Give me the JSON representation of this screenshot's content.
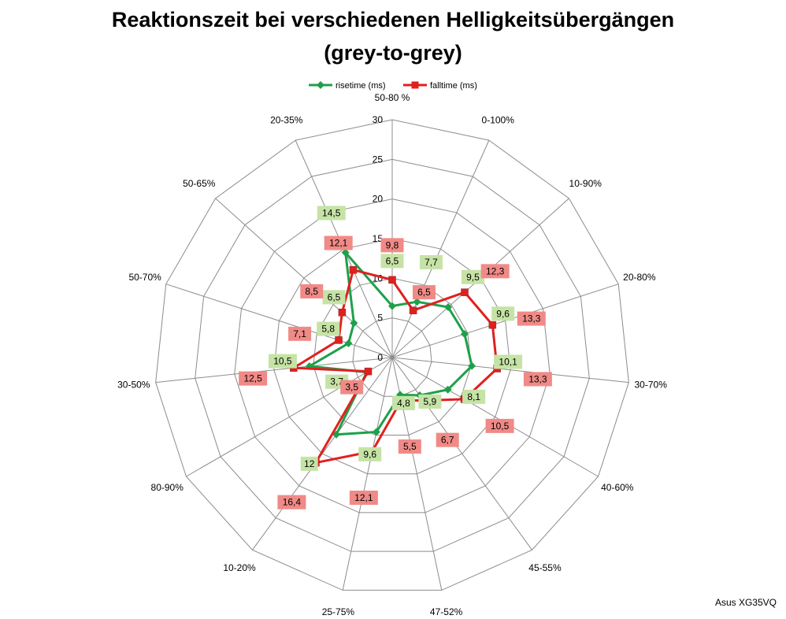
{
  "chart_data": {
    "type": "radar",
    "title_line1": "Reaktionszeit bei verschiedenen Helligkeitsübergängen",
    "title_line2": "(grey-to-grey)",
    "categories": [
      "50-80 %",
      "0-100%",
      "10-90%",
      "20-80%",
      "30-70%",
      "40-60%",
      "45-55%",
      "47-52%",
      "25-75%",
      "10-20%",
      "80-90%",
      "30-50%",
      "50-70%",
      "50-65%",
      "20-35%"
    ],
    "r_ticks": [
      "0",
      "5",
      "10",
      "15",
      "20",
      "25",
      "30"
    ],
    "rlim": [
      0,
      30
    ],
    "series": [
      {
        "name": "risetime (ms)",
        "color": "#1ea04b",
        "label_bg": "#c6e3a6",
        "marker": "diamond",
        "values": [
          6.5,
          7.7,
          9.5,
          9.6,
          10.1,
          8.1,
          5.9,
          4.8,
          9.6,
          12,
          3.7,
          10.5,
          5.8,
          6.5,
          14.5
        ],
        "labels": [
          "6,5",
          "7,7",
          "9,5",
          "9,6",
          "10,1",
          "8,1",
          "5,9",
          "4,8",
          "9,6",
          "12",
          "3,7",
          "10,5",
          "5,8",
          "6,5",
          "14,5"
        ]
      },
      {
        "name": "falltime (ms)",
        "color": "#e0201e",
        "label_bg": "#f08a87",
        "marker": "square",
        "values": [
          9.8,
          6.5,
          12.3,
          13.3,
          13.3,
          10.5,
          6.7,
          5.5,
          12.1,
          16.4,
          3.5,
          12.5,
          7.1,
          8.5,
          12.1
        ],
        "labels": [
          "9,8",
          "6,5",
          "12,3",
          "13,3",
          "13,3",
          "10,5",
          "6,7",
          "5,5",
          "12,1",
          "16,4",
          "3,5",
          "12,5",
          "7,1",
          "8,5",
          "12,1"
        ]
      }
    ],
    "legend_position": "top",
    "grid": true
  },
  "watermark": "Asus XG35VQ"
}
